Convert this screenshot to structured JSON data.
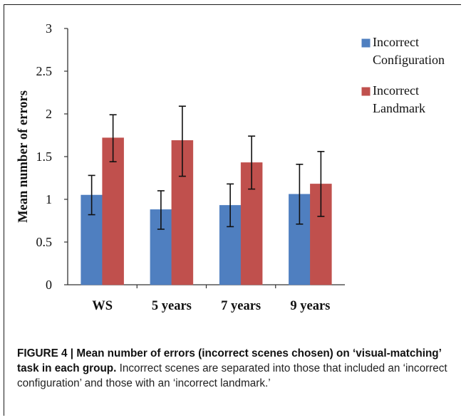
{
  "chart_data": {
    "type": "bar",
    "title": "",
    "xlabel": "",
    "ylabel": "Mean number of errors",
    "ylim": [
      0,
      3
    ],
    "yticks": [
      0,
      0.5,
      1,
      1.5,
      2,
      2.5,
      3
    ],
    "ytick_labels": [
      "0",
      "0.5",
      "1",
      "1.5",
      "2",
      "2.5",
      "3"
    ],
    "categories": [
      "WS",
      "5 years",
      "7 years",
      "9 years"
    ],
    "series": [
      {
        "name": "Incorrect Configuration",
        "legend_lines": [
          "Incorrect",
          "Configuration"
        ],
        "color": "#4f7fc0",
        "values": [
          1.05,
          0.88,
          0.93,
          1.06
        ],
        "err_low": [
          0.82,
          0.65,
          0.68,
          0.71
        ],
        "err_high": [
          1.28,
          1.1,
          1.18,
          1.41
        ]
      },
      {
        "name": "Incorrect Landmark",
        "legend_lines": [
          "Incorrect",
          "Landmark"
        ],
        "color": "#c0504d",
        "values": [
          1.72,
          1.69,
          1.43,
          1.18
        ],
        "err_low": [
          1.44,
          1.27,
          1.12,
          0.8
        ],
        "err_high": [
          1.99,
          2.09,
          1.74,
          1.56
        ]
      }
    ],
    "grid": false,
    "legend_position": "top-right"
  },
  "caption": {
    "label": "FIGURE 4 | Mean number of errors (incorrect scenes chosen) on ‘visual-matching’ task in each group.",
    "text": " Incorrect scenes are separated into those that included an ‘incorrect configuration’ and those with an ‘incorrect landmark.’"
  }
}
